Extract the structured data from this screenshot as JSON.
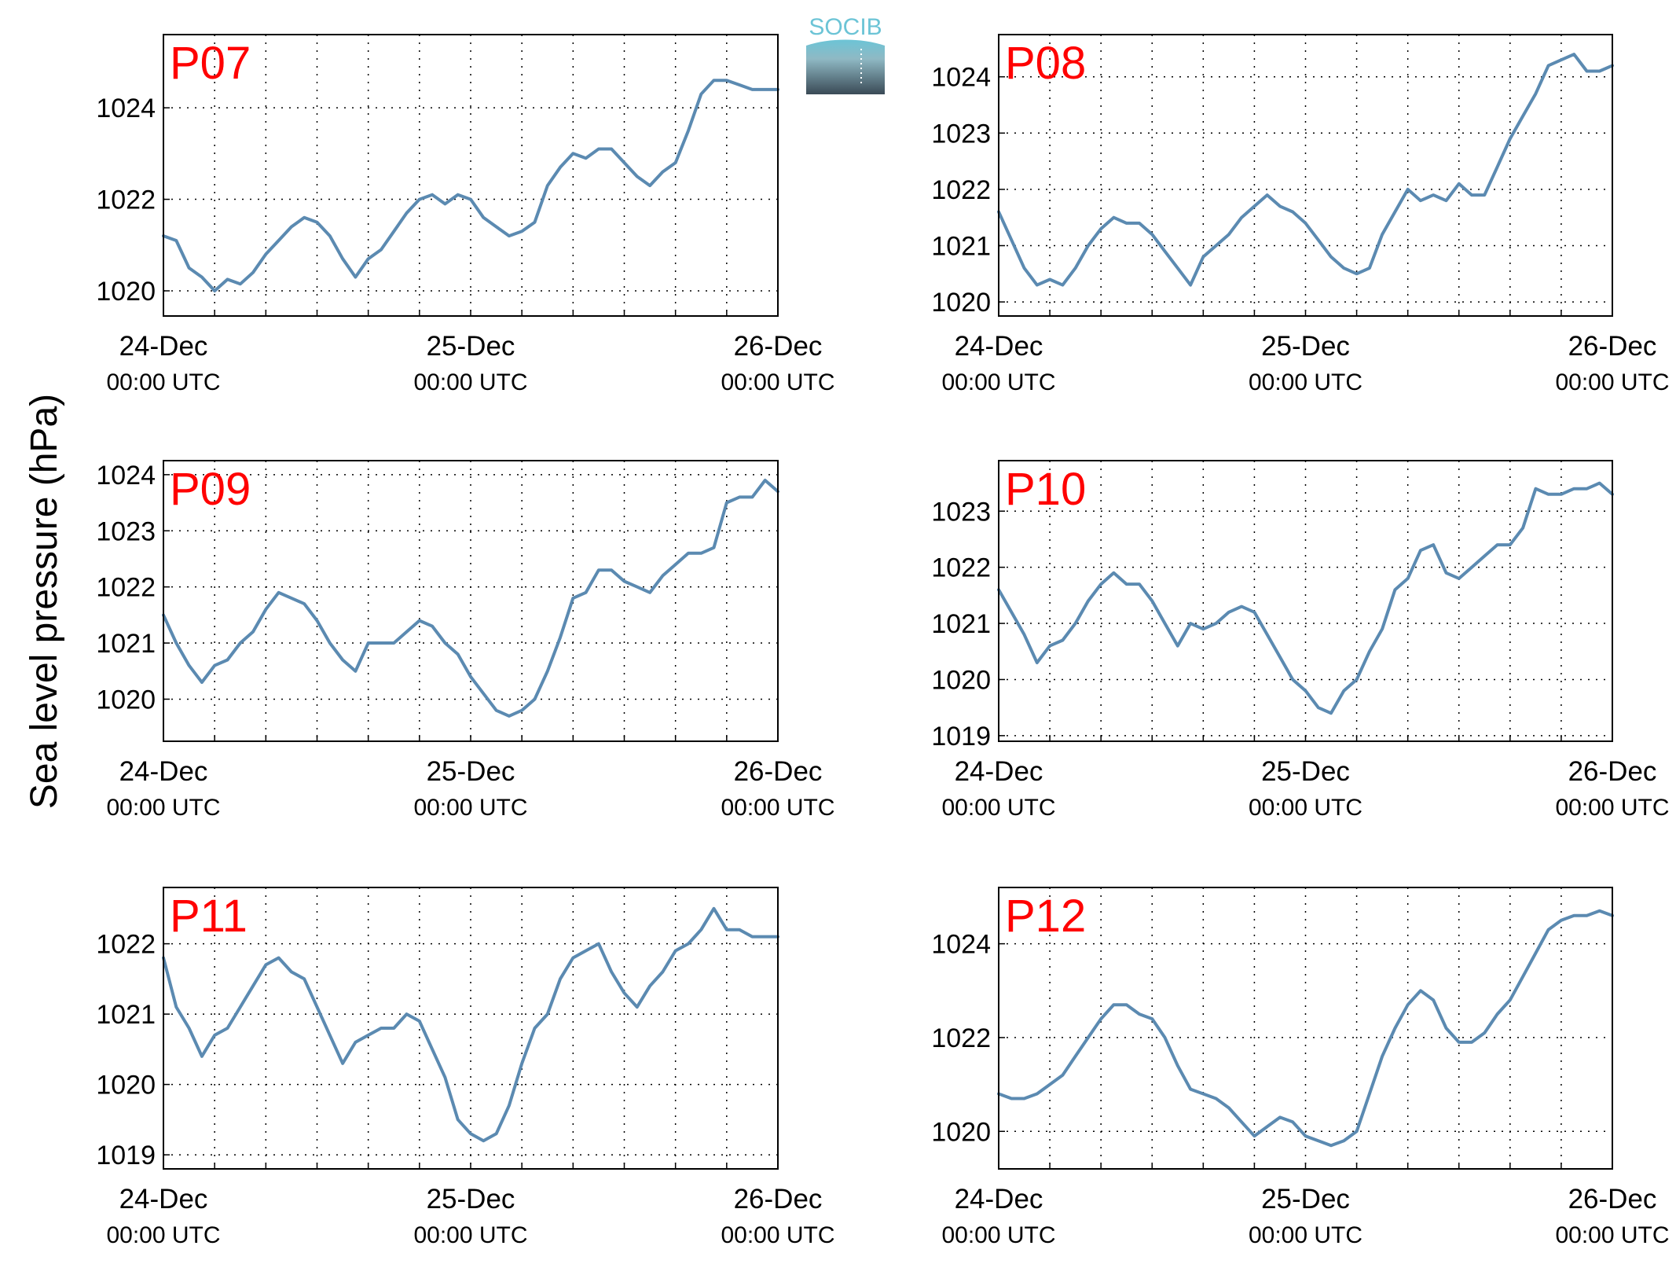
{
  "figure": {
    "ylabel": "Sea level pressure (hPa)",
    "logo_text": "SOCIB",
    "colors": {
      "line": "#5b8ab1",
      "station_label": "#ff0000",
      "axes": "#000000",
      "grid": "#000000",
      "logo_top": "#6cc4d6",
      "logo_bottom": "#3a4a56"
    }
  },
  "chart_data": [
    {
      "type": "line",
      "title": "P07",
      "xlim": [
        0,
        48
      ],
      "x_ticks": [
        {
          "value": 0,
          "top": "24-Dec",
          "bottom": "00:00 UTC"
        },
        {
          "value": 24,
          "top": "25-Dec",
          "bottom": "00:00 UTC"
        },
        {
          "value": 48,
          "top": "26-Dec",
          "bottom": "00:00 UTC"
        }
      ],
      "ylim": [
        1019.45,
        1025.6
      ],
      "y_ticks": [
        1020,
        1022,
        1024
      ],
      "grid": true,
      "x": [
        0,
        1,
        2,
        3,
        4,
        5,
        6,
        7,
        8,
        9,
        10,
        11,
        12,
        13,
        14,
        15,
        16,
        17,
        18,
        19,
        20,
        21,
        22,
        23,
        24,
        25,
        26,
        27,
        28,
        29,
        30,
        31,
        32,
        33,
        34,
        35,
        36,
        37,
        38,
        39,
        40,
        41,
        42,
        43,
        44,
        45,
        46,
        47,
        48
      ],
      "series": [
        {
          "values": [
            1021.2,
            1021.1,
            1020.5,
            1020.3,
            1020,
            1020.25,
            1020.15,
            1020.4,
            1020.8,
            1021.1,
            1021.4,
            1021.6,
            1021.5,
            1021.2,
            1020.7,
            1020.3,
            1020.7,
            1020.9,
            1021.3,
            1021.7,
            1022,
            1022.1,
            1021.9,
            1022.1,
            1022,
            1021.6,
            1021.4,
            1021.2,
            1021.3,
            1021.5,
            1022.3,
            1022.7,
            1023,
            1022.9,
            1023.1,
            1023.1,
            1022.8,
            1022.5,
            1022.3,
            1022.6,
            1022.8,
            1023.5,
            1024.3,
            1024.6,
            1024.6,
            1024.5,
            1024.4,
            1024.4,
            1024.4
          ]
        }
      ]
    },
    {
      "type": "line",
      "title": "P08",
      "xlim": [
        0,
        48
      ],
      "x_ticks": [
        {
          "value": 0,
          "top": "24-Dec",
          "bottom": "00:00 UTC"
        },
        {
          "value": 24,
          "top": "25-Dec",
          "bottom": "00:00 UTC"
        },
        {
          "value": 48,
          "top": "26-Dec",
          "bottom": "00:00 UTC"
        }
      ],
      "ylim": [
        1019.75,
        1024.75
      ],
      "y_ticks": [
        1020,
        1021,
        1022,
        1023,
        1024
      ],
      "grid": true,
      "x": [
        0,
        1,
        2,
        3,
        4,
        5,
        6,
        7,
        8,
        9,
        10,
        11,
        12,
        13,
        14,
        15,
        16,
        17,
        18,
        19,
        20,
        21,
        22,
        23,
        24,
        25,
        26,
        27,
        28,
        29,
        30,
        31,
        32,
        33,
        34,
        35,
        36,
        37,
        38,
        39,
        40,
        41,
        42,
        43,
        44,
        45,
        46,
        47,
        48
      ],
      "series": [
        {
          "values": [
            1021.6,
            1021.1,
            1020.6,
            1020.3,
            1020.4,
            1020.3,
            1020.6,
            1021,
            1021.3,
            1021.5,
            1021.4,
            1021.4,
            1021.2,
            1020.9,
            1020.6,
            1020.3,
            1020.8,
            1021,
            1021.2,
            1021.5,
            1021.7,
            1021.9,
            1021.7,
            1021.6,
            1021.4,
            1021.1,
            1020.8,
            1020.6,
            1020.5,
            1020.6,
            1021.2,
            1021.6,
            1022,
            1021.8,
            1021.9,
            1021.8,
            1022.1,
            1021.9,
            1021.9,
            1022.4,
            1022.9,
            1023.3,
            1023.7,
            1024.2,
            1024.3,
            1024.4,
            1024.1,
            1024.1,
            1024.2
          ]
        }
      ]
    },
    {
      "type": "line",
      "title": "P09",
      "xlim": [
        0,
        48
      ],
      "x_ticks": [
        {
          "value": 0,
          "top": "24-Dec",
          "bottom": "00:00 UTC"
        },
        {
          "value": 24,
          "top": "25-Dec",
          "bottom": "00:00 UTC"
        },
        {
          "value": 48,
          "top": "26-Dec",
          "bottom": "00:00 UTC"
        }
      ],
      "ylim": [
        1019.25,
        1024.25
      ],
      "y_ticks": [
        1020,
        1021,
        1022,
        1023,
        1024
      ],
      "grid": true,
      "x": [
        0,
        1,
        2,
        3,
        4,
        5,
        6,
        7,
        8,
        9,
        10,
        11,
        12,
        13,
        14,
        15,
        16,
        17,
        18,
        19,
        20,
        21,
        22,
        23,
        24,
        25,
        26,
        27,
        28,
        29,
        30,
        31,
        32,
        33,
        34,
        35,
        36,
        37,
        38,
        39,
        40,
        41,
        42,
        43,
        44,
        45,
        46,
        47,
        48
      ],
      "series": [
        {
          "values": [
            1021.5,
            1021,
            1020.6,
            1020.3,
            1020.6,
            1020.7,
            1021,
            1021.2,
            1021.6,
            1021.9,
            1021.8,
            1021.7,
            1021.4,
            1021,
            1020.7,
            1020.5,
            1021,
            1021,
            1021,
            1021.2,
            1021.4,
            1021.3,
            1021,
            1020.8,
            1020.4,
            1020.1,
            1019.8,
            1019.7,
            1019.8,
            1020,
            1020.5,
            1021.1,
            1021.8,
            1021.9,
            1022.3,
            1022.3,
            1022.1,
            1022,
            1021.9,
            1022.2,
            1022.4,
            1022.6,
            1022.6,
            1022.7,
            1023.5,
            1023.6,
            1023.6,
            1023.9,
            1023.7
          ]
        }
      ]
    },
    {
      "type": "line",
      "title": "P10",
      "xlim": [
        0,
        48
      ],
      "x_ticks": [
        {
          "value": 0,
          "top": "24-Dec",
          "bottom": "00:00 UTC"
        },
        {
          "value": 24,
          "top": "25-Dec",
          "bottom": "00:00 UTC"
        },
        {
          "value": 48,
          "top": "26-Dec",
          "bottom": "00:00 UTC"
        }
      ],
      "ylim": [
        1018.9,
        1023.9
      ],
      "y_ticks": [
        1019,
        1020,
        1021,
        1022,
        1023
      ],
      "grid": true,
      "x": [
        0,
        1,
        2,
        3,
        4,
        5,
        6,
        7,
        8,
        9,
        10,
        11,
        12,
        13,
        14,
        15,
        16,
        17,
        18,
        19,
        20,
        21,
        22,
        23,
        24,
        25,
        26,
        27,
        28,
        29,
        30,
        31,
        32,
        33,
        34,
        35,
        36,
        37,
        38,
        39,
        40,
        41,
        42,
        43,
        44,
        45,
        46,
        47,
        48
      ],
      "series": [
        {
          "values": [
            1021.6,
            1021.2,
            1020.8,
            1020.3,
            1020.6,
            1020.7,
            1021,
            1021.4,
            1021.7,
            1021.9,
            1021.7,
            1021.7,
            1021.4,
            1021,
            1020.6,
            1021,
            1020.9,
            1021,
            1021.2,
            1021.3,
            1021.2,
            1020.8,
            1020.4,
            1020,
            1019.8,
            1019.5,
            1019.4,
            1019.8,
            1020,
            1020.5,
            1020.9,
            1021.6,
            1021.8,
            1022.3,
            1022.4,
            1021.9,
            1021.8,
            1022,
            1022.2,
            1022.4,
            1022.4,
            1022.7,
            1023.4,
            1023.3,
            1023.3,
            1023.4,
            1023.4,
            1023.5,
            1023.3
          ]
        }
      ]
    },
    {
      "type": "line",
      "title": "P11",
      "xlim": [
        0,
        48
      ],
      "x_ticks": [
        {
          "value": 0,
          "top": "24-Dec",
          "bottom": "00:00 UTC"
        },
        {
          "value": 24,
          "top": "25-Dec",
          "bottom": "00:00 UTC"
        },
        {
          "value": 48,
          "top": "26-Dec",
          "bottom": "00:00 UTC"
        }
      ],
      "ylim": [
        1018.8,
        1022.8
      ],
      "y_ticks": [
        1019,
        1020,
        1021,
        1022
      ],
      "grid": true,
      "x": [
        0,
        1,
        2,
        3,
        4,
        5,
        6,
        7,
        8,
        9,
        10,
        11,
        12,
        13,
        14,
        15,
        16,
        17,
        18,
        19,
        20,
        21,
        22,
        23,
        24,
        25,
        26,
        27,
        28,
        29,
        30,
        31,
        32,
        33,
        34,
        35,
        36,
        37,
        38,
        39,
        40,
        41,
        42,
        43,
        44,
        45,
        46,
        47,
        48
      ],
      "series": [
        {
          "values": [
            1021.8,
            1021.1,
            1020.8,
            1020.4,
            1020.7,
            1020.8,
            1021.1,
            1021.4,
            1021.7,
            1021.8,
            1021.6,
            1021.5,
            1021.1,
            1020.7,
            1020.3,
            1020.6,
            1020.7,
            1020.8,
            1020.8,
            1021,
            1020.9,
            1020.5,
            1020.1,
            1019.5,
            1019.3,
            1019.2,
            1019.3,
            1019.7,
            1020.3,
            1020.8,
            1021,
            1021.5,
            1021.8,
            1021.9,
            1022,
            1021.6,
            1021.3,
            1021.1,
            1021.4,
            1021.6,
            1021.9,
            1022,
            1022.2,
            1022.5,
            1022.2,
            1022.2,
            1022.1,
            1022.1,
            1022.1
          ]
        }
      ]
    },
    {
      "type": "line",
      "title": "P12",
      "xlim": [
        0,
        48
      ],
      "x_ticks": [
        {
          "value": 0,
          "top": "24-Dec",
          "bottom": "00:00 UTC"
        },
        {
          "value": 24,
          "top": "25-Dec",
          "bottom": "00:00 UTC"
        },
        {
          "value": 48,
          "top": "26-Dec",
          "bottom": "00:00 UTC"
        }
      ],
      "ylim": [
        1019.2,
        1025.2
      ],
      "y_ticks": [
        1020,
        1022,
        1024
      ],
      "grid": true,
      "x": [
        0,
        1,
        2,
        3,
        4,
        5,
        6,
        7,
        8,
        9,
        10,
        11,
        12,
        13,
        14,
        15,
        16,
        17,
        18,
        19,
        20,
        21,
        22,
        23,
        24,
        25,
        26,
        27,
        28,
        29,
        30,
        31,
        32,
        33,
        34,
        35,
        36,
        37,
        38,
        39,
        40,
        41,
        42,
        43,
        44,
        45,
        46,
        47,
        48
      ],
      "series": [
        {
          "values": [
            1020.8,
            1020.7,
            1020.7,
            1020.8,
            1021,
            1021.2,
            1021.6,
            1022,
            1022.4,
            1022.7,
            1022.7,
            1022.5,
            1022.4,
            1022,
            1021.4,
            1020.9,
            1020.8,
            1020.7,
            1020.5,
            1020.2,
            1019.9,
            1020.1,
            1020.3,
            1020.2,
            1019.9,
            1019.8,
            1019.7,
            1019.8,
            1020,
            1020.8,
            1021.6,
            1022.2,
            1022.7,
            1023,
            1022.8,
            1022.2,
            1021.9,
            1021.9,
            1022.1,
            1022.5,
            1022.8,
            1023.3,
            1023.8,
            1024.3,
            1024.5,
            1024.6,
            1024.6,
            1024.7,
            1024.6
          ]
        }
      ]
    }
  ]
}
